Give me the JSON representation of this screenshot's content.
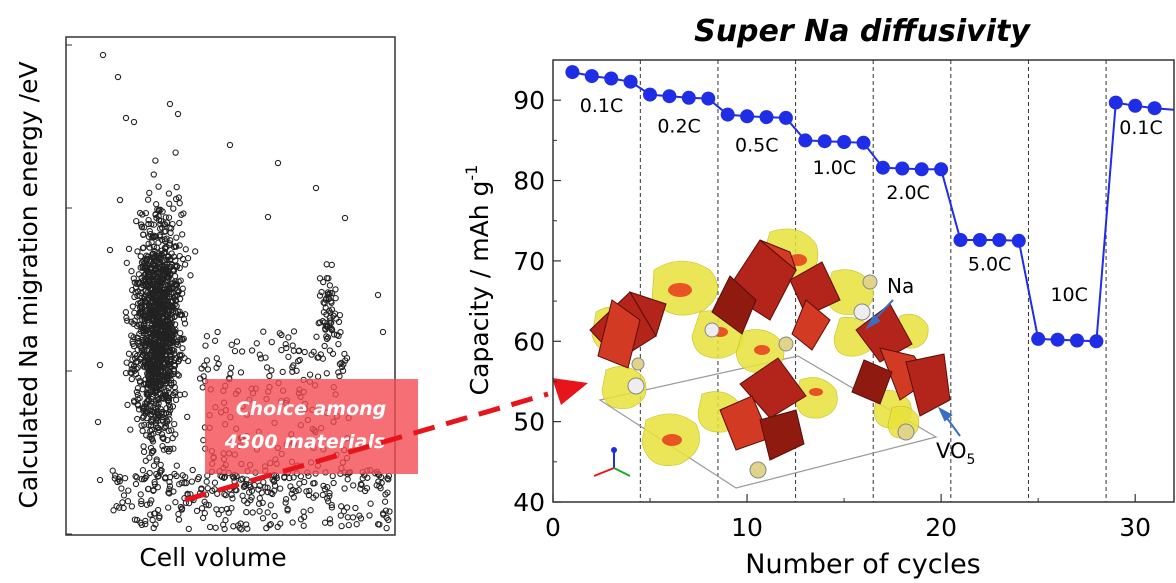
{
  "left_chart": {
    "xlabel": "Cell volume",
    "ylabel": "Calculated Na migration energy /eV",
    "annotation": "Choice among 4300 materials",
    "annotation_lines": [
      "Choice among",
      "4300 materials"
    ]
  },
  "right_chart": {
    "title": "Super Na diffusivity",
    "xlabel": "Number of cycles",
    "ylabel_main": "Capacity / mAh g",
    "ylabel_sup": "-1",
    "xticks": [
      "0",
      "10",
      "20",
      "30"
    ],
    "yticks": [
      "40",
      "50",
      "60",
      "70",
      "80",
      "90"
    ],
    "rate_labels": [
      "0.1C",
      "0.2C",
      "0.5C",
      "1.0C",
      "2.0C",
      "5.0C",
      "10C",
      "0.1C"
    ],
    "inset_labels": {
      "na": "Na",
      "vo_main": "VO",
      "vo_sub": "5"
    }
  },
  "chart_data": [
    {
      "type": "scatter",
      "xlabel": "Cell volume",
      "ylabel": "Calculated Na migration energy /eV",
      "points_count_label": "4300 materials"
    },
    {
      "type": "line",
      "title": "Super Na diffusivity",
      "xlabel": "Number of cycles",
      "ylabel": "Capacity / mAh g-1",
      "xlim": [
        0,
        32
      ],
      "ylim": [
        40,
        95
      ],
      "series": [
        {
          "x": [
            1,
            2,
            3,
            4,
            5,
            6,
            7,
            8,
            9,
            10,
            11,
            12,
            13,
            14,
            15,
            16,
            17,
            18,
            19,
            20,
            21,
            22,
            23,
            24,
            25,
            26,
            27,
            28,
            29,
            30,
            31,
            32
          ],
          "y": [
            93.5,
            93,
            92.7,
            92.3,
            90.7,
            90.5,
            90.3,
            90.2,
            88.2,
            88,
            87.9,
            87.8,
            85,
            84.9,
            84.8,
            84.7,
            81.6,
            81.5,
            81.4,
            81.4,
            72.6,
            72.6,
            72.6,
            72.5,
            60.3,
            60.2,
            60.1,
            60,
            89.7,
            89.3,
            89,
            88.8
          ]
        }
      ],
      "rate_boundaries": [
        4.5,
        8.5,
        12.5,
        16.5,
        20.5,
        24.5,
        28.5
      ],
      "color": "#1f2de6",
      "grid": false
    }
  ],
  "colors": {
    "series": "#1f2de6",
    "annotation_box": "#f24b52",
    "arrow": "#e8141c",
    "polyhedra": "#b3251a",
    "isosurface": "#e8e23a",
    "vo_arrow": "#3a6fc4"
  }
}
